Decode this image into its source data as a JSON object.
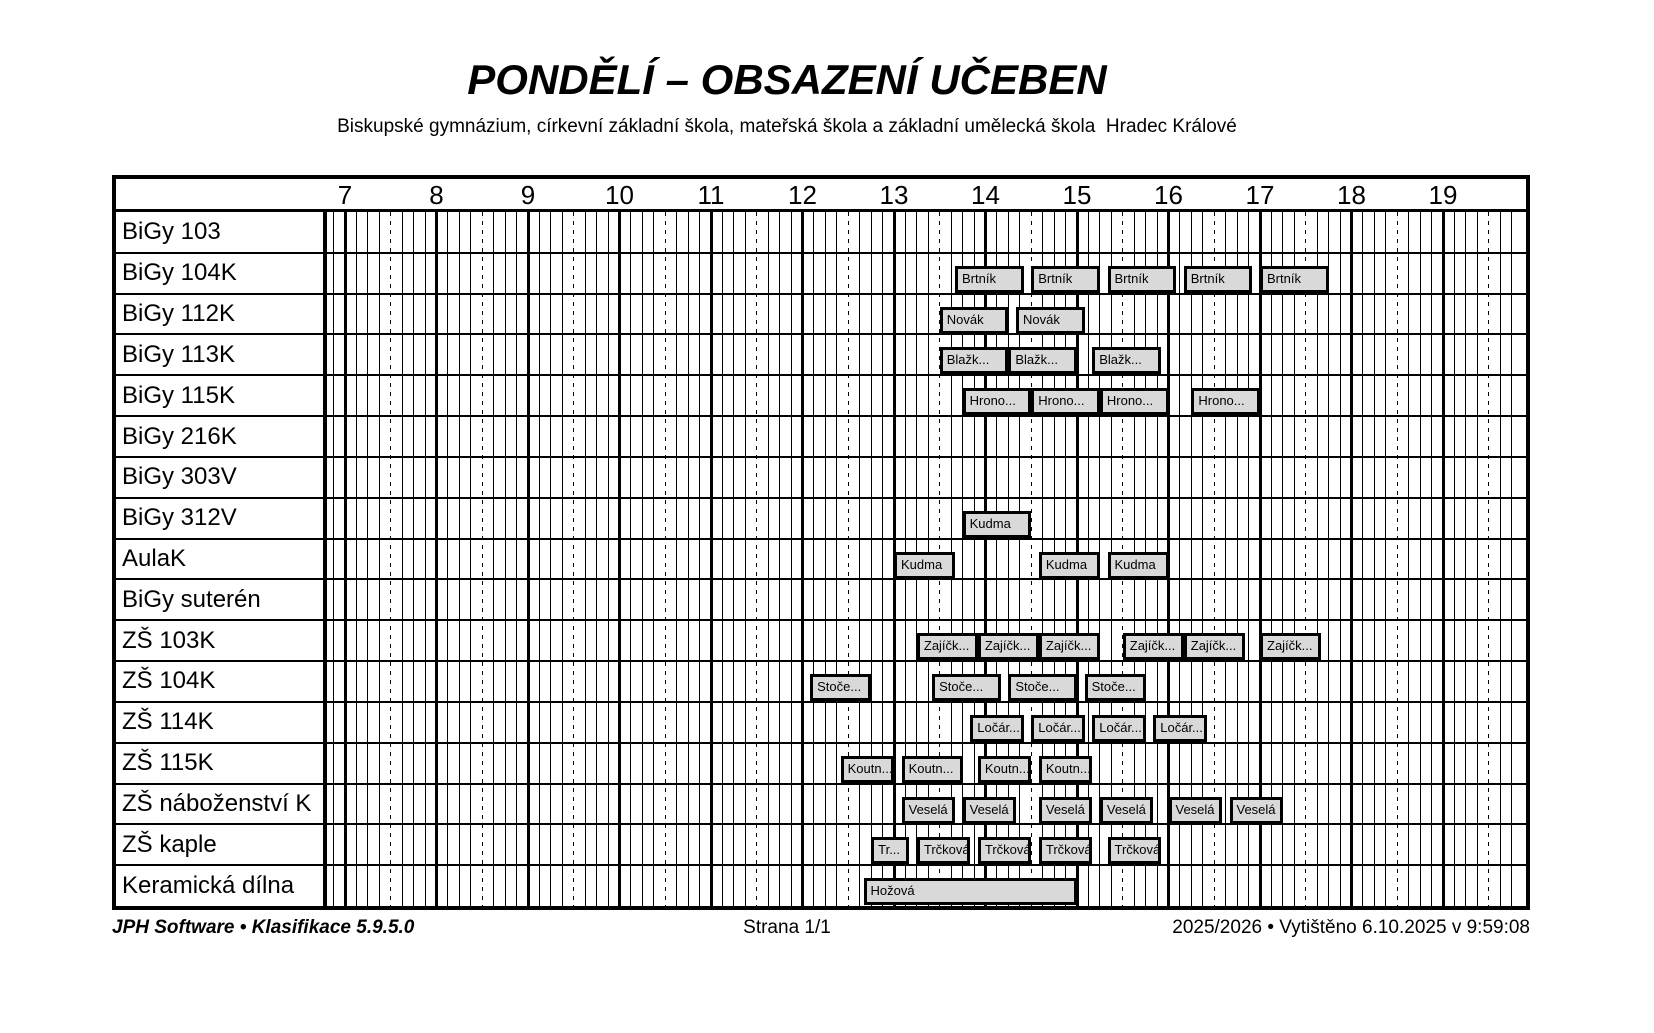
{
  "page": {
    "title": "PONDĚLÍ – OBSAZENÍ UČEBEN",
    "subtitle": "Biskupské gymnázium, církevní základní škola, mateřská škola a základní umělecká škola  Hradec Králové"
  },
  "footer": {
    "left": "JPH Software • Klasifikace 5.9.5.0",
    "center": "Strana 1/1",
    "right": "2025/2026 • Vytištěno 6.10.2025 v 9:59:08"
  },
  "colors": {
    "background": "#ffffff",
    "grid_line": "#000000",
    "block_fill": "#d9d9d9",
    "block_border": "#000000"
  },
  "time_axis": {
    "hours": [
      "7",
      "8",
      "9",
      "10",
      "11",
      "12",
      "13",
      "14",
      "15",
      "16",
      "17",
      "18",
      "19"
    ]
  },
  "schedule": {
    "rooms": [
      {
        "name": "BiGy 103",
        "blocks": []
      },
      {
        "name": "BiGy 104K",
        "blocks": [
          {
            "label": "Brtník",
            "start": "13:40",
            "end": "14:25"
          },
          {
            "label": "Brtník",
            "start": "14:30",
            "end": "15:15"
          },
          {
            "label": "Brtník",
            "start": "15:20",
            "end": "16:05"
          },
          {
            "label": "Brtník",
            "start": "16:10",
            "end": "16:55"
          },
          {
            "label": "Brtník",
            "start": "17:00",
            "end": "17:45"
          }
        ]
      },
      {
        "name": "BiGy 112K",
        "blocks": [
          {
            "label": "Novák",
            "start": "13:30",
            "end": "14:15"
          },
          {
            "label": "Novák",
            "start": "14:20",
            "end": "15:05"
          }
        ]
      },
      {
        "name": "BiGy 113K",
        "blocks": [
          {
            "label": "Blažk...",
            "start": "13:30",
            "end": "14:15"
          },
          {
            "label": "Blažk...",
            "start": "14:15",
            "end": "15:00"
          },
          {
            "label": "Blažk...",
            "start": "15:10",
            "end": "15:55"
          }
        ]
      },
      {
        "name": "BiGy 115K",
        "blocks": [
          {
            "label": "Hrono...",
            "start": "13:45",
            "end": "14:30"
          },
          {
            "label": "Hrono...",
            "start": "14:30",
            "end": "15:15"
          },
          {
            "label": "Hrono...",
            "start": "15:15",
            "end": "16:00"
          },
          {
            "label": "Hrono...",
            "start": "16:15",
            "end": "17:00"
          }
        ]
      },
      {
        "name": "BiGy 216K",
        "blocks": []
      },
      {
        "name": "BiGy 303V",
        "blocks": []
      },
      {
        "name": "BiGy 312V",
        "blocks": [
          {
            "label": "Kudma",
            "start": "13:45",
            "end": "14:30"
          }
        ]
      },
      {
        "name": "AulaK",
        "blocks": [
          {
            "label": "Kudma",
            "start": "13:00",
            "end": "13:40"
          },
          {
            "label": "Kudma",
            "start": "14:35",
            "end": "15:15"
          },
          {
            "label": "Kudma",
            "start": "15:20",
            "end": "16:00"
          }
        ]
      },
      {
        "name": "BiGy suterén",
        "blocks": []
      },
      {
        "name": "ZŠ 103K",
        "blocks": [
          {
            "label": "Zajíčk...",
            "start": "13:15",
            "end": "13:55"
          },
          {
            "label": "Zajíčk...",
            "start": "13:55",
            "end": "14:35"
          },
          {
            "label": "Zajíčk...",
            "start": "14:35",
            "end": "15:15"
          },
          {
            "label": "Zajíčk...",
            "start": "15:30",
            "end": "16:10"
          },
          {
            "label": "Zajíčk...",
            "start": "16:10",
            "end": "16:50"
          },
          {
            "label": "Zajíčk...",
            "start": "17:00",
            "end": "17:40"
          }
        ]
      },
      {
        "name": "ZŠ 104K",
        "blocks": [
          {
            "label": "Stoče...",
            "start": "12:05",
            "end": "12:45"
          },
          {
            "label": "Stoče...",
            "start": "13:25",
            "end": "14:10"
          },
          {
            "label": "Stoče...",
            "start": "14:15",
            "end": "15:00"
          },
          {
            "label": "Stoče...",
            "start": "15:05",
            "end": "15:45"
          }
        ]
      },
      {
        "name": "ZŠ 114K",
        "blocks": [
          {
            "label": "Ločár...",
            "start": "13:50",
            "end": "14:25"
          },
          {
            "label": "Ločár...",
            "start": "14:30",
            "end": "15:05"
          },
          {
            "label": "Ločár...",
            "start": "15:10",
            "end": "15:45"
          },
          {
            "label": "Ločár...",
            "start": "15:50",
            "end": "16:25"
          }
        ]
      },
      {
        "name": "ZŠ 115K",
        "blocks": [
          {
            "label": "Koutn...",
            "start": "12:25",
            "end": "13:00"
          },
          {
            "label": "Koutn...",
            "start": "13:05",
            "end": "13:45"
          },
          {
            "label": "Koutn...",
            "start": "13:55",
            "end": "14:30"
          },
          {
            "label": "Koutn...",
            "start": "14:35",
            "end": "15:10"
          }
        ]
      },
      {
        "name": "ZŠ náboženství K",
        "blocks": [
          {
            "label": "Veselá",
            "start": "13:05",
            "end": "13:40"
          },
          {
            "label": "Veselá",
            "start": "13:45",
            "end": "14:20"
          },
          {
            "label": "Veselá",
            "start": "14:35",
            "end": "15:10"
          },
          {
            "label": "Veselá",
            "start": "15:15",
            "end": "15:50"
          },
          {
            "label": "Veselá",
            "start": "16:00",
            "end": "16:35"
          },
          {
            "label": "Veselá",
            "start": "16:40",
            "end": "17:15"
          }
        ]
      },
      {
        "name": "ZŠ kaple",
        "blocks": [
          {
            "label": "Tr...",
            "start": "12:45",
            "end": "13:10"
          },
          {
            "label": "Trčková",
            "start": "13:15",
            "end": "13:50"
          },
          {
            "label": "Trčková",
            "start": "13:55",
            "end": "14:30"
          },
          {
            "label": "Trčková",
            "start": "14:35",
            "end": "15:10"
          },
          {
            "label": "Trčková",
            "start": "15:20",
            "end": "15:55"
          }
        ]
      },
      {
        "name": "Keramická dílna",
        "blocks": [
          {
            "label": "Hožová",
            "start": "12:40",
            "end": "15:00"
          }
        ]
      }
    ]
  }
}
